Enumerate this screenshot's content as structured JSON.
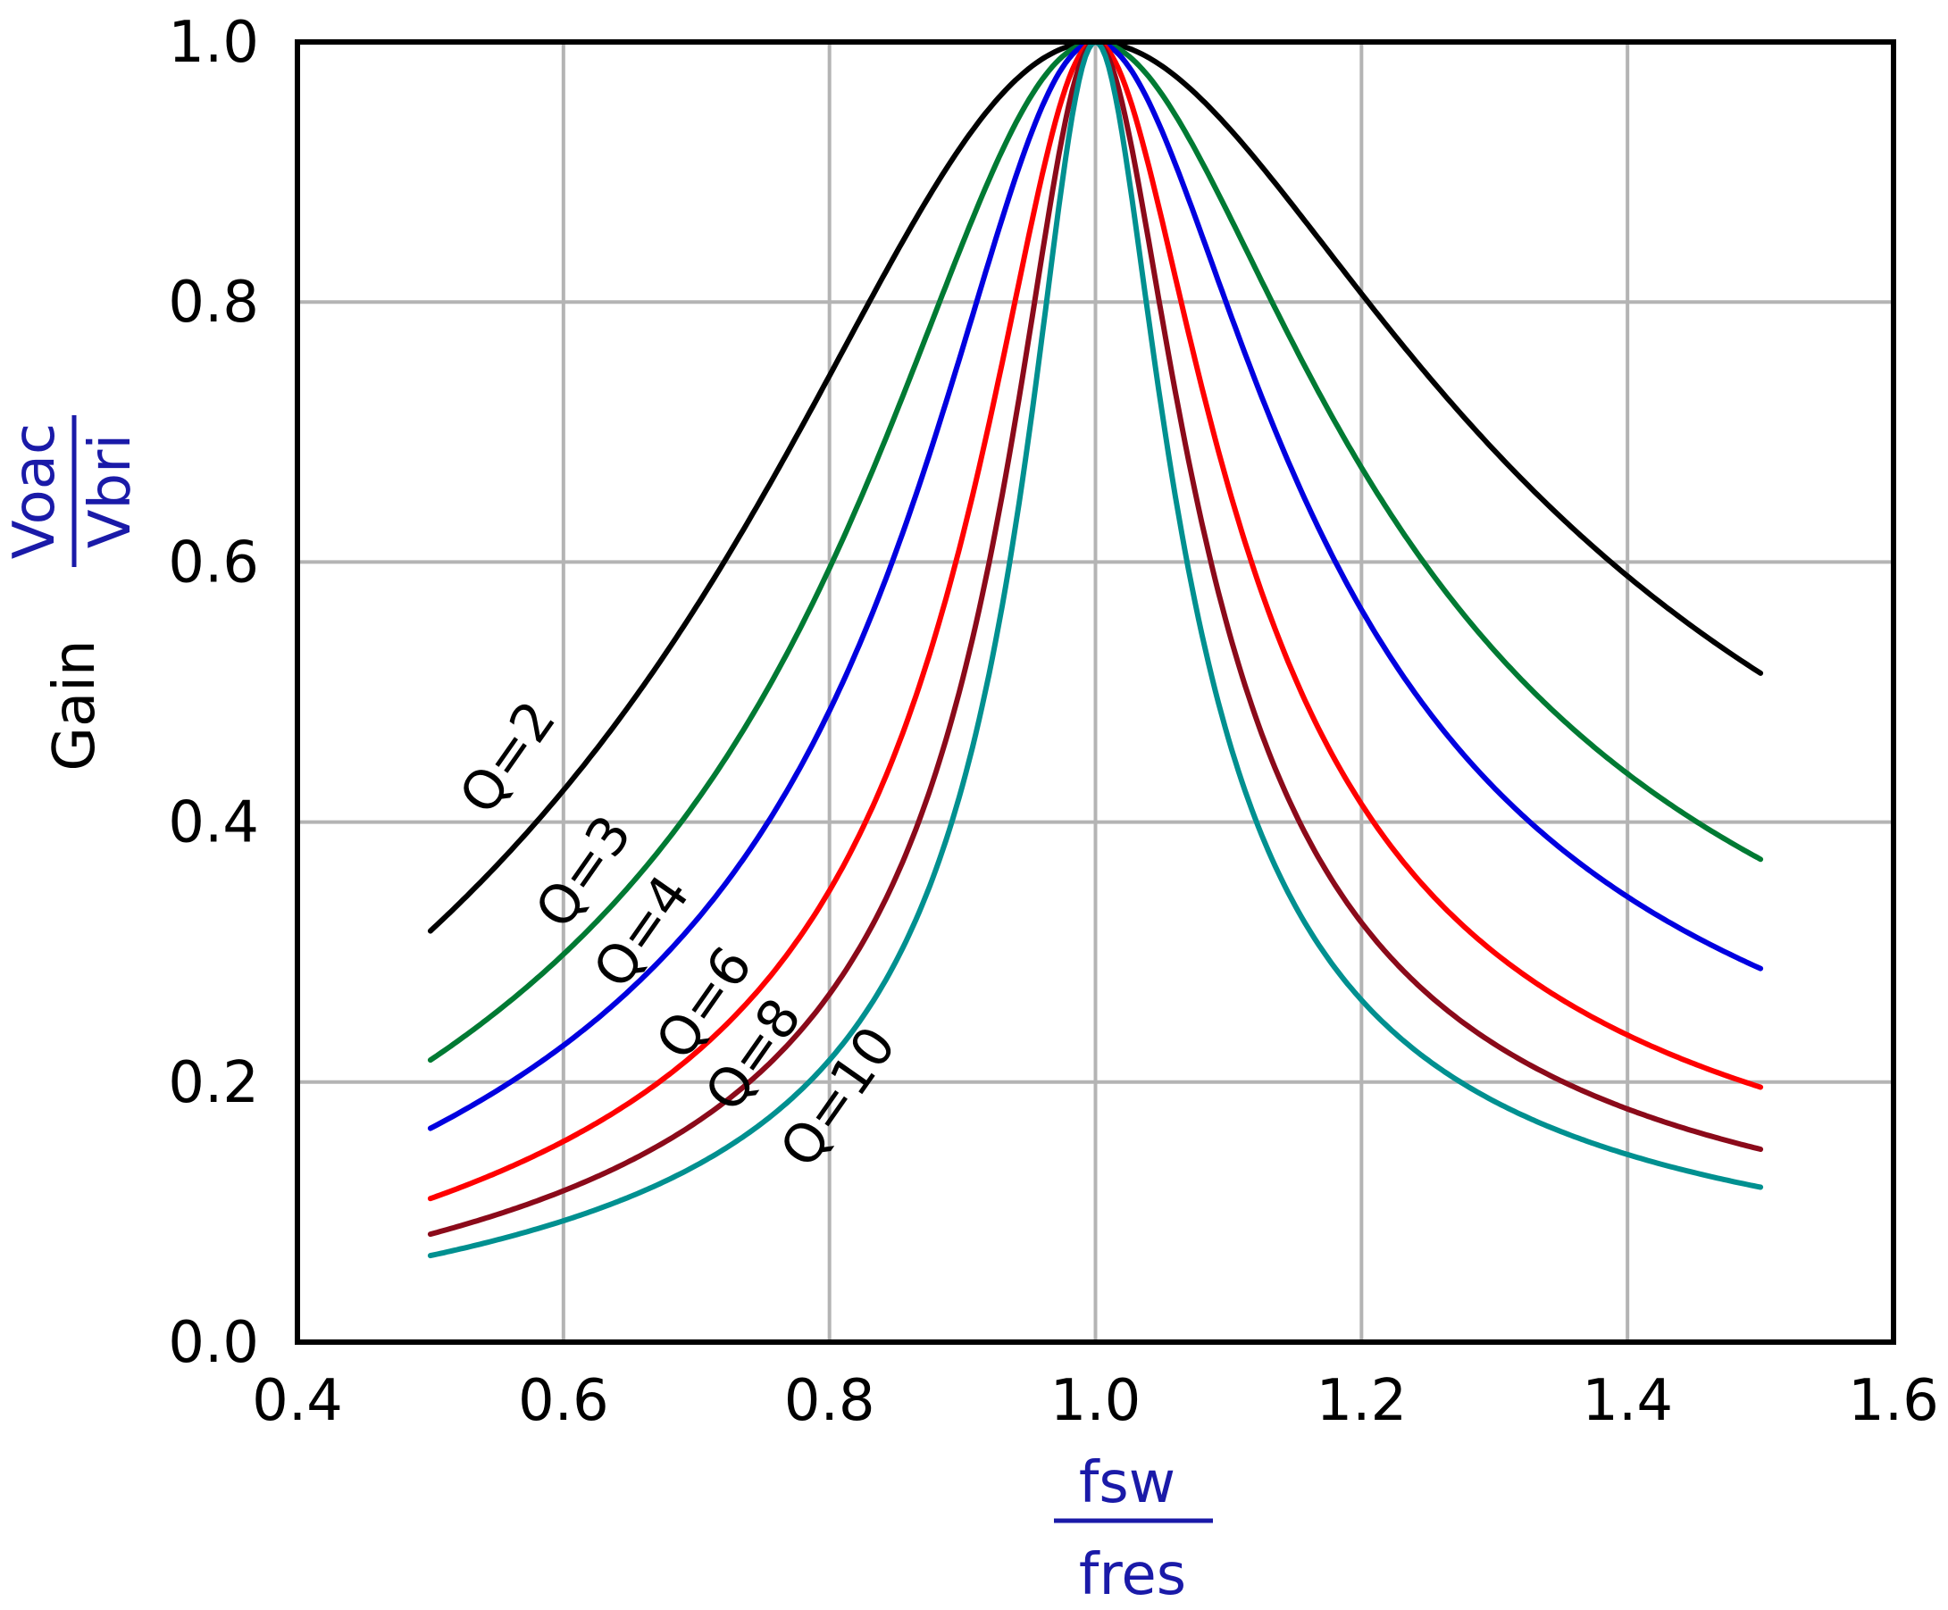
{
  "chart_data": {
    "type": "line",
    "title": "",
    "xlabel": {
      "numerator": "fsw",
      "denominator": "fres"
    },
    "ylabel": {
      "prefix": "Gain",
      "numerator": "Voac",
      "denominator": "Vbri"
    },
    "xlim": [
      0.4,
      1.6
    ],
    "ylim": [
      0.0,
      1.0
    ],
    "grid": true,
    "xticks": [
      0.4,
      0.6,
      0.8,
      1.0,
      1.2,
      1.4,
      1.6
    ],
    "xtick_labels": [
      "0.4",
      "0.6",
      "0.8",
      "1.0",
      "1.2",
      "1.4",
      "1.6"
    ],
    "yticks": [
      0.0,
      0.2,
      0.4,
      0.6,
      0.8,
      1.0
    ],
    "ytick_labels": [
      "0.0",
      "0.2",
      "0.4",
      "0.6",
      "0.8",
      "1.0"
    ],
    "x_range": [
      0.5,
      1.5
    ],
    "series": [
      {
        "name": "Q=2",
        "q": 2,
        "color": "#000000",
        "label": "Q=2"
      },
      {
        "name": "Q=3",
        "q": 3,
        "color": "#007a33",
        "label": "Q=3"
      },
      {
        "name": "Q=4",
        "q": 4,
        "color": "#0000e0",
        "label": "Q=4"
      },
      {
        "name": "Q=6",
        "q": 6,
        "color": "#ff0000",
        "label": "Q=6"
      },
      {
        "name": "Q=8",
        "q": 8,
        "color": "#8b0a1a",
        "label": "Q=8"
      },
      {
        "name": "Q=10",
        "q": 10,
        "color": "#009090",
        "label": "Q=10"
      }
    ],
    "axis_label_color": "#1a1aa8"
  }
}
